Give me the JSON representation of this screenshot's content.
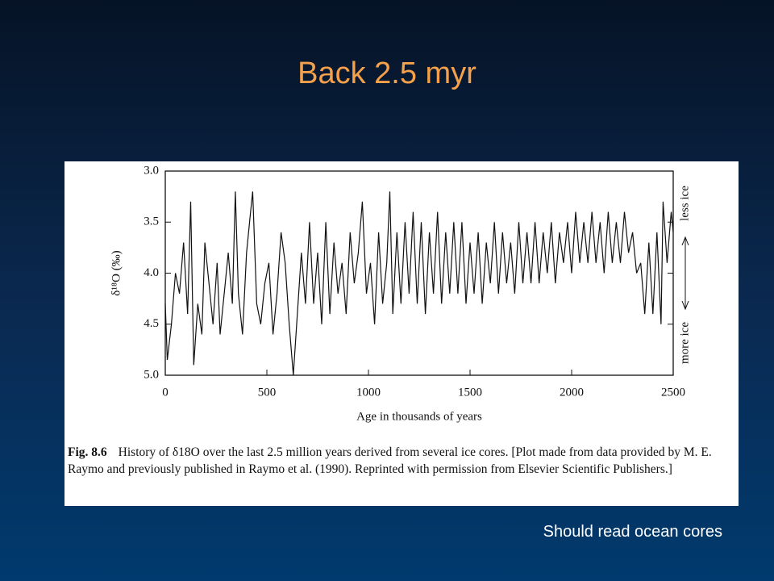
{
  "slide_title": "Back 2.5 myr",
  "note": "Should read ocean cores",
  "caption_label": "Fig. 8.6",
  "caption_text": "History of δ18O over the last 2.5 million years derived from several ice cores. [Plot made from data provided by M. E. Raymo and previously published in Raymo et al. (1990). Reprinted with permission from Elsevier Scientific Publishers.]",
  "chart_data": {
    "type": "line",
    "xlabel": "Age in thousands of years",
    "ylabel": "δ¹⁸O (‰)",
    "annotations": [
      "less ice",
      "more ice"
    ],
    "color": "#111111",
    "xlim": [
      0,
      2500
    ],
    "xticks": [
      0,
      500,
      1000,
      1500,
      2000,
      2500
    ],
    "ylim": [
      5.0,
      3.0
    ],
    "yticks": [
      {
        "value": 3.0,
        "label": "3.0"
      },
      {
        "value": 3.5,
        "label": "3.5"
      },
      {
        "value": 4.0,
        "label": "4.0"
      },
      {
        "value": 4.5,
        "label": "4.5"
      },
      {
        "value": 5.0,
        "label": "5.0"
      }
    ],
    "x": [
      0,
      10,
      30,
      50,
      70,
      90,
      110,
      125,
      140,
      160,
      180,
      195,
      215,
      235,
      255,
      270,
      290,
      310,
      330,
      345,
      360,
      380,
      400,
      420,
      430,
      450,
      470,
      490,
      510,
      530,
      550,
      570,
      590,
      610,
      630,
      650,
      670,
      690,
      710,
      730,
      750,
      770,
      790,
      810,
      830,
      850,
      870,
      890,
      910,
      930,
      950,
      970,
      990,
      1010,
      1030,
      1050,
      1070,
      1090,
      1105,
      1120,
      1140,
      1160,
      1180,
      1200,
      1220,
      1240,
      1260,
      1280,
      1300,
      1320,
      1340,
      1360,
      1380,
      1400,
      1420,
      1440,
      1460,
      1480,
      1500,
      1520,
      1540,
      1560,
      1580,
      1600,
      1620,
      1640,
      1660,
      1680,
      1700,
      1720,
      1740,
      1760,
      1780,
      1800,
      1820,
      1840,
      1860,
      1880,
      1900,
      1920,
      1940,
      1960,
      1980,
      2000,
      2020,
      2040,
      2060,
      2080,
      2100,
      2120,
      2140,
      2160,
      2180,
      2200,
      2220,
      2240,
      2260,
      2280,
      2300,
      2320,
      2340,
      2360,
      2380,
      2400,
      2420,
      2440,
      2450,
      2470,
      2490,
      2500
    ],
    "values": [
      4.3,
      4.85,
      4.5,
      4.0,
      4.2,
      3.7,
      4.4,
      3.3,
      4.9,
      4.3,
      4.6,
      3.7,
      4.1,
      4.5,
      3.9,
      4.6,
      4.2,
      3.8,
      4.3,
      3.2,
      4.2,
      4.6,
      3.8,
      3.4,
      3.2,
      4.3,
      4.5,
      4.1,
      3.9,
      4.6,
      4.2,
      3.6,
      3.9,
      4.5,
      5.0,
      4.4,
      3.8,
      4.3,
      3.5,
      4.3,
      3.8,
      4.5,
      3.5,
      4.4,
      3.7,
      4.2,
      3.9,
      4.4,
      3.6,
      4.1,
      3.8,
      3.3,
      4.2,
      3.9,
      4.5,
      3.6,
      4.3,
      3.9,
      3.2,
      4.4,
      3.6,
      4.3,
      3.5,
      4.2,
      3.4,
      4.3,
      3.5,
      4.4,
      3.6,
      4.2,
      3.4,
      4.3,
      3.6,
      4.2,
      3.5,
      4.2,
      3.5,
      4.3,
      3.7,
      4.2,
      3.6,
      4.3,
      3.7,
      4.1,
      3.5,
      4.2,
      3.6,
      4.1,
      3.7,
      4.2,
      3.5,
      4.1,
      3.6,
      4.1,
      3.5,
      4.1,
      3.6,
      4.0,
      3.5,
      4.1,
      3.6,
      3.9,
      3.5,
      4.0,
      3.4,
      3.9,
      3.5,
      3.9,
      3.4,
      3.9,
      3.5,
      4.0,
      3.4,
      3.9,
      3.5,
      3.9,
      3.4,
      3.8,
      3.6,
      4.0,
      3.9,
      4.4,
      3.7,
      4.4,
      3.6,
      4.5,
      3.3,
      3.9,
      3.4,
      3.6
    ]
  }
}
